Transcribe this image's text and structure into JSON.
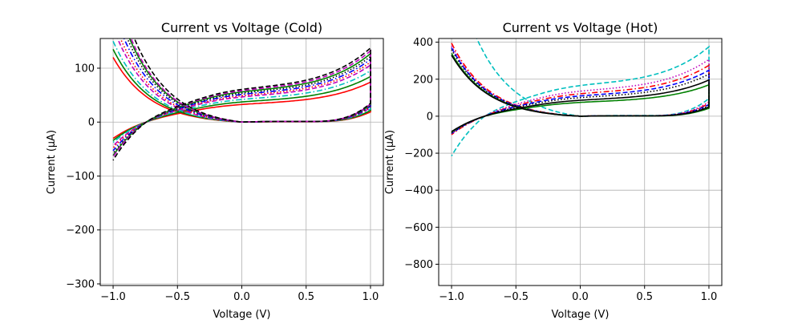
{
  "figure": {
    "background": "#ffffff"
  },
  "chart_data": [
    {
      "type": "line",
      "title": "Current vs Voltage (Cold)",
      "xlabel": "Voltage (V)",
      "ylabel": "Current (µA)",
      "xlim": [
        -1.1,
        1.1
      ],
      "ylim": [
        -303,
        155
      ],
      "xticks": [
        -1.0,
        -0.5,
        0.0,
        0.5,
        1.0
      ],
      "xtick_labels": [
        "−1.0",
        "−0.5",
        "0.0",
        "0.5",
        "1.0"
      ],
      "yticks": [
        -300,
        -200,
        -100,
        0,
        100
      ],
      "ytick_labels": [
        "−300",
        "−200",
        "−100",
        "0",
        "100"
      ],
      "grid": true,
      "series": [
        {
          "color": "#ff0000",
          "dash": "solid",
          "i_min": -120,
          "i_max": 70,
          "scale": 0.55
        },
        {
          "color": "#008000",
          "dash": "solid",
          "i_min": -135,
          "i_max": 80,
          "scale": 0.65
        },
        {
          "color": "#00bfbf",
          "dash": "dashdot",
          "i_min": -150,
          "i_max": 90,
          "scale": 0.72
        },
        {
          "color": "#bf00bf",
          "dash": "dashed",
          "i_min": -175,
          "i_max": 100,
          "scale": 0.78
        },
        {
          "color": "#ff0000",
          "dash": "dotted",
          "i_min": -190,
          "i_max": 105,
          "scale": 0.83
        },
        {
          "color": "#0000ff",
          "dash": "dashdot",
          "i_min": -210,
          "i_max": 110,
          "scale": 0.88
        },
        {
          "color": "#000000",
          "dash": "dotted",
          "i_min": -230,
          "i_max": 115,
          "scale": 0.92
        },
        {
          "color": "#008000",
          "dash": "solid",
          "i_min": -245,
          "i_max": 120,
          "scale": 0.95
        },
        {
          "color": "#bf00bf",
          "dash": "dashed",
          "i_min": -255,
          "i_max": 125,
          "scale": 0.98
        },
        {
          "color": "#000000",
          "dash": "dashed",
          "i_min": -280,
          "i_max": 130,
          "scale": 1.0
        }
      ]
    },
    {
      "type": "line",
      "title": "Current vs Voltage (Hot)",
      "xlabel": "Voltage (V)",
      "ylabel": "Current (µA)",
      "xlim": [
        -1.1,
        1.1
      ],
      "ylim": [
        -915,
        420
      ],
      "xticks": [
        -1.0,
        -0.5,
        0.0,
        0.5,
        1.0
      ],
      "xtick_labels": [
        "−1.0",
        "−0.5",
        "0.0",
        "0.5",
        "1.0"
      ],
      "yticks": [
        -800,
        -600,
        -400,
        -200,
        0,
        200,
        400
      ],
      "ytick_labels": [
        "−800",
        "−600",
        "−400",
        "−200",
        "0",
        "200",
        "400"
      ],
      "grid": true,
      "series": [
        {
          "color": "#00bfbf",
          "dash": "dashed",
          "i_min": -850,
          "i_max": 355,
          "scale": 1.0
        },
        {
          "color": "#bf00bf",
          "dash": "dotted",
          "i_min": -380,
          "i_max": 290,
          "scale": 0.95
        },
        {
          "color": "#ff0000",
          "dash": "dashdot",
          "i_min": -395,
          "i_max": 260,
          "scale": 0.93
        },
        {
          "color": "#0000ff",
          "dash": "dashed",
          "i_min": -370,
          "i_max": 235,
          "scale": 0.9
        },
        {
          "color": "#000000",
          "dash": "dotted",
          "i_min": -360,
          "i_max": 215,
          "scale": 0.88
        },
        {
          "color": "#008000",
          "dash": "solid",
          "i_min": -340,
          "i_max": 160,
          "scale": 0.85
        },
        {
          "color": "#000000",
          "dash": "solid",
          "i_min": -330,
          "i_max": 185,
          "scale": 0.87
        }
      ]
    }
  ]
}
